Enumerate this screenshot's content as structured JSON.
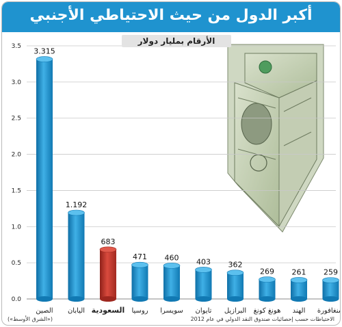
{
  "title": "أكبر الدول من حيث الاحتياطي الأجنبي",
  "unit_label": "الأرقام بمليار دولار",
  "source_note": "الاحتياطات حسب إحصائيات صندوق النقد الدولي في عام 2012",
  "credit": "(«الشرق الأوسط»)",
  "colors": {
    "header": "#1f93cf",
    "bar": "#1f93cf",
    "highlight_bar": "#c9352b"
  },
  "chart_data": {
    "type": "bar",
    "title": "أكبر الدول من حيث الاحتياطي الأجنبي",
    "ylabel": "",
    "xlabel": "",
    "ylim": [
      0,
      3.5
    ],
    "yticks": [
      0,
      0.5,
      1.0,
      1.5,
      2.0,
      2.5,
      3.0,
      3.5
    ],
    "ytick_labels": [
      "0.0",
      "0.5",
      "1.0",
      "1.5",
      "2.0",
      "2.5",
      "3.0",
      "3.5"
    ],
    "grid": true,
    "categories": [
      "الصين",
      "اليابان",
      "السعودية",
      "روسيا",
      "سويسرا",
      "تايوان",
      "البرازيل",
      "هونغ كونغ",
      "الهند",
      "سنغافورة"
    ],
    "values": [
      3.315,
      1.192,
      0.683,
      0.471,
      0.46,
      0.403,
      0.362,
      0.269,
      0.261,
      0.259
    ],
    "value_labels": [
      "3.315",
      "1.192",
      "683",
      "471",
      "460",
      "403",
      "362",
      "269",
      "261",
      "259"
    ],
    "highlight_index": 2
  }
}
